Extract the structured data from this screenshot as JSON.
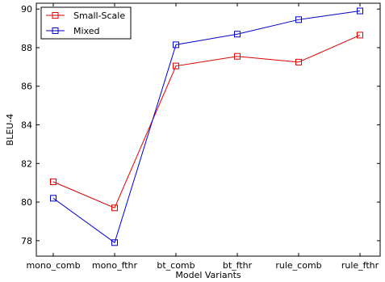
{
  "chart_data": {
    "type": "line",
    "title": "",
    "xlabel": "Model Variants",
    "ylabel": "BLEU-4",
    "categories": [
      "mono_comb",
      "mono_fthr",
      "bt_comb",
      "bt_fthr",
      "rule_comb",
      "rule_fthr"
    ],
    "ylim": [
      77.2,
      90.3
    ],
    "yticks": [
      78,
      80,
      82,
      84,
      86,
      88,
      90
    ],
    "grid": false,
    "legend_position": "top-left",
    "marker": "square",
    "series": [
      {
        "name": "Small-Scale",
        "color": "#e00000",
        "values": [
          81.05,
          79.7,
          87.05,
          87.55,
          87.25,
          88.65
        ]
      },
      {
        "name": "Mixed",
        "color": "#0000cc",
        "values": [
          80.2,
          77.9,
          88.15,
          88.7,
          89.45,
          89.9
        ]
      }
    ]
  }
}
